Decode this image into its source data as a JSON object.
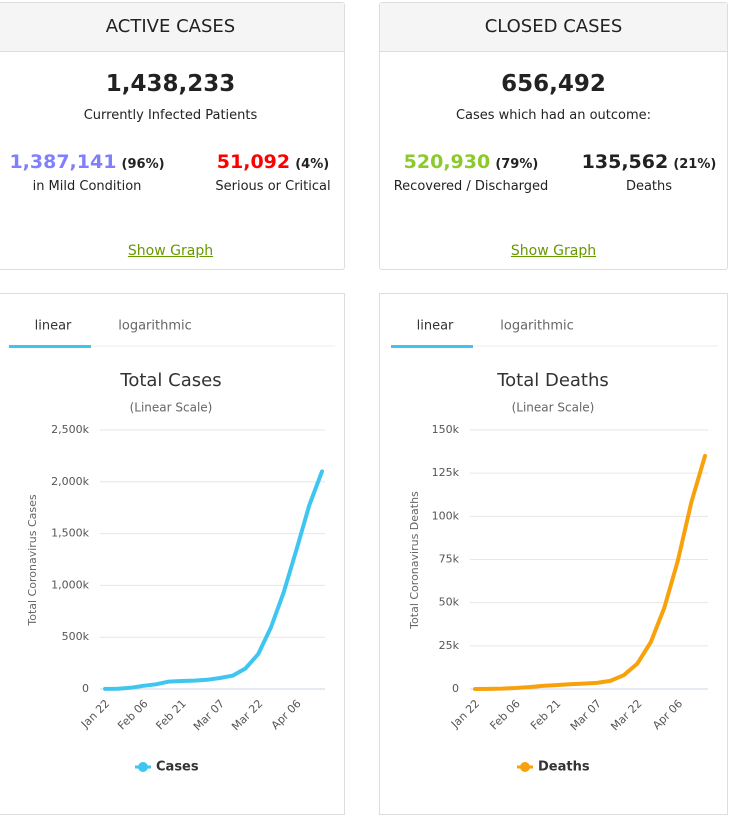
{
  "panels": [
    {
      "title": "ACTIVE CASES",
      "total": "1,438,233",
      "caption": "Currently Infected Patients",
      "left": {
        "value": "1,387,141",
        "pct": "(96%)",
        "label": "in Mild Condition",
        "color": "#8080ff"
      },
      "right": {
        "value": "51,092",
        "pct": "(4%)",
        "label": "Serious or Critical",
        "color": "#ff0000"
      },
      "link": "Show Graph"
    },
    {
      "title": "CLOSED CASES",
      "total": "656,492",
      "caption": "Cases which had an outcome:",
      "left": {
        "value": "520,930",
        "pct": "(79%)",
        "label": "Recovered / Discharged",
        "color": "#8aca2b"
      },
      "right": {
        "value": "135,562",
        "pct": "(21%)",
        "label": "Deaths",
        "color": "#222222"
      },
      "link": "Show Graph"
    }
  ],
  "chart_data": [
    {
      "type": "line",
      "tabs": [
        "linear",
        "logarithmic"
      ],
      "title": "Total Cases",
      "subtitle": "(Linear Scale)",
      "y_label": "Total Coronavirus Cases",
      "categories": [
        "Jan 22",
        null,
        null,
        "Feb 06",
        null,
        null,
        "Feb 21",
        null,
        null,
        "Mar 07",
        null,
        null,
        "Mar 22",
        null,
        null,
        "Apr 06",
        null,
        null
      ],
      "series": [
        {
          "name": "Cases",
          "color": "#3ec6f0",
          "values": [
            600,
            2900,
            12000,
            31000,
            45000,
            71000,
            77000,
            81000,
            89000,
            106000,
            128000,
            198000,
            337000,
            594000,
            933000,
            1346000,
            1771000,
            2100000
          ]
        }
      ],
      "ylim": [
        0,
        2500000
      ],
      "yticks": [
        0,
        {
          "value": 500000,
          "label": "500k"
        },
        {
          "value": 1000000,
          "label": "1,000k"
        },
        {
          "value": 1500000,
          "label": "1,500k"
        },
        {
          "value": 2000000,
          "label": "2,000k"
        },
        {
          "value": 2500000,
          "label": "2,500k"
        }
      ],
      "grid": true,
      "legend": "bottom"
    },
    {
      "type": "line",
      "tabs": [
        "linear",
        "logarithmic"
      ],
      "title": "Total Deaths",
      "subtitle": "(Linear Scale)",
      "y_label": "Total Coronavirus Deaths",
      "categories": [
        "Jan 22",
        null,
        null,
        "Feb 06",
        null,
        null,
        "Feb 21",
        null,
        null,
        "Mar 07",
        null,
        null,
        "Mar 22",
        null,
        null,
        "Apr 06",
        null,
        null
      ],
      "series": [
        {
          "name": "Deaths",
          "color": "#f7a20c",
          "values": [
            17,
            82,
            259,
            565,
            1118,
            1770,
            2250,
            2770,
            3100,
            3560,
            4720,
            7980,
            14700,
            27300,
            47200,
            74500,
            108500,
            135000
          ]
        }
      ],
      "ylim": [
        0,
        150000
      ],
      "yticks": [
        0,
        {
          "value": 25000,
          "label": "25k"
        },
        {
          "value": 50000,
          "label": "50k"
        },
        {
          "value": 75000,
          "label": "75k"
        },
        {
          "value": 100000,
          "label": "100k"
        },
        {
          "value": 125000,
          "label": "125k"
        },
        {
          "value": 150000,
          "label": "150k"
        }
      ],
      "grid": true,
      "legend": "bottom"
    }
  ]
}
